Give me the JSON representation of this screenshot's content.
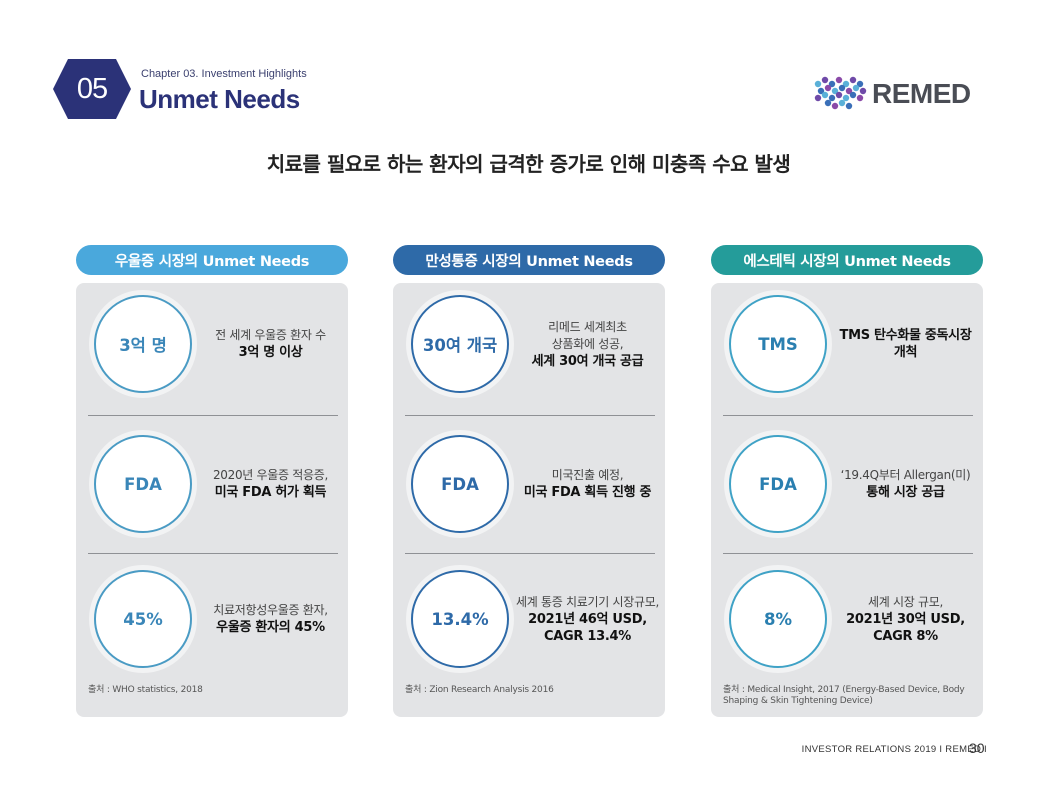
{
  "header": {
    "chapter_number": "05",
    "chapter_label": "Chapter 03. Investment Highlights",
    "title": "Unmet Needs",
    "logo_text": "REMED"
  },
  "headline": "치료를 필요로 하는 환자의 급격한 증가로 인해 미충족 수요 발생",
  "columns": [
    {
      "title": "우울증 시장의 Unmet Needs",
      "color": "#4aa8dc",
      "rows": [
        {
          "circle": "3억 명",
          "line1": "전 세계 우울증 환자 수",
          "line2": "",
          "bold": "3억 명 이상"
        },
        {
          "circle": "FDA",
          "line1": "2020년 우울증 적응증,",
          "line2": "",
          "bold": "미국 FDA 허가 획득"
        },
        {
          "circle": "45%",
          "line1": "치료저항성우울증 환자,",
          "line2": "",
          "bold": "우울증 환자의 45%"
        }
      ],
      "source": "출처 : WHO statistics, 2018"
    },
    {
      "title": "만성통증 시장의 Unmet Needs",
      "color": "#2e6aa8",
      "rows": [
        {
          "circle": "30여 개국",
          "line1": "리메드 세계최초",
          "line2": "상품화에 성공,",
          "bold": "세계 30여 개국 공급"
        },
        {
          "circle": "FDA",
          "line1": "미국진출 예정,",
          "line2": "",
          "bold": "미국 FDA 획득 진행 중"
        },
        {
          "circle": "13.4%",
          "line1": "세계 통증 치료기기 시장규모,",
          "line2": "",
          "bold": "2021년 46억 USD, CAGR 13.4%"
        }
      ],
      "source": "출처 : Zion Research Analysis 2016"
    },
    {
      "title": "에스테틱 시장의 Unmet Needs",
      "color": "#249c9a",
      "rows": [
        {
          "circle": "TMS",
          "line1": "",
          "line2": "",
          "bold": "TMS 탄수화물 중독시장 개척"
        },
        {
          "circle": "FDA",
          "line1": "‘19.4Q부터 Allergan(미)",
          "line2": "",
          "bold": "통해 시장 공급"
        },
        {
          "circle": "8%",
          "line1": "세계 시장 규모,",
          "line2": "",
          "bold": "2021년 30억 USD, CAGR 8%"
        }
      ],
      "source": "출처 : Medical Insight, 2017 (Energy-Based Device, Body Shaping & Skin Tightening Device)"
    }
  ],
  "footer": {
    "text": "INVESTOR RELATIONS 2019  I  REMED  I",
    "page": "30"
  }
}
